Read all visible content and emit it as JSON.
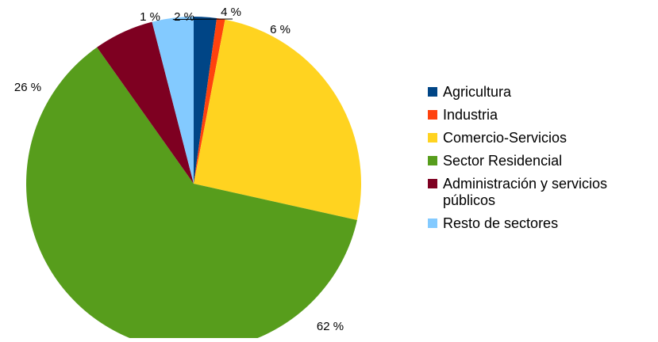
{
  "chart_data": {
    "type": "pie",
    "title": "",
    "unit": "%",
    "start_angle_deg": 0,
    "direction": "clockwise",
    "slices": [
      {
        "label": "Agricultura",
        "value": 2.2,
        "display": "2 %",
        "color": "#004586"
      },
      {
        "label": "Industria",
        "value": 0.8,
        "display": "1 %",
        "color": "#ff420e"
      },
      {
        "label": "Comercio-Servicios",
        "value": 25.5,
        "display": "26 %",
        "color": "#ffd320"
      },
      {
        "label": "Sector Residencial",
        "value": 61.7,
        "display": "62 %",
        "color": "#579d1c"
      },
      {
        "label": "Administración y servicios públicos",
        "value": 5.8,
        "display": "6 %",
        "color": "#7e0021"
      },
      {
        "label": "Resto de sectores",
        "value": 4.0,
        "display": "4 %",
        "color": "#83caff"
      }
    ],
    "legend": {
      "position": "right",
      "items": [
        {
          "lines": [
            "Agricultura"
          ],
          "color": "#004586"
        },
        {
          "lines": [
            "Industria"
          ],
          "color": "#ff420e"
        },
        {
          "lines": [
            "Comercio-Servicios"
          ],
          "color": "#ffd320"
        },
        {
          "lines": [
            "Sector Residencial"
          ],
          "color": "#579d1c"
        },
        {
          "lines": [
            "Administración y servicios",
            "públicos"
          ],
          "color": "#7e0021"
        },
        {
          "lines": [
            "Resto de sectores"
          ],
          "color": "#83caff"
        }
      ]
    }
  }
}
